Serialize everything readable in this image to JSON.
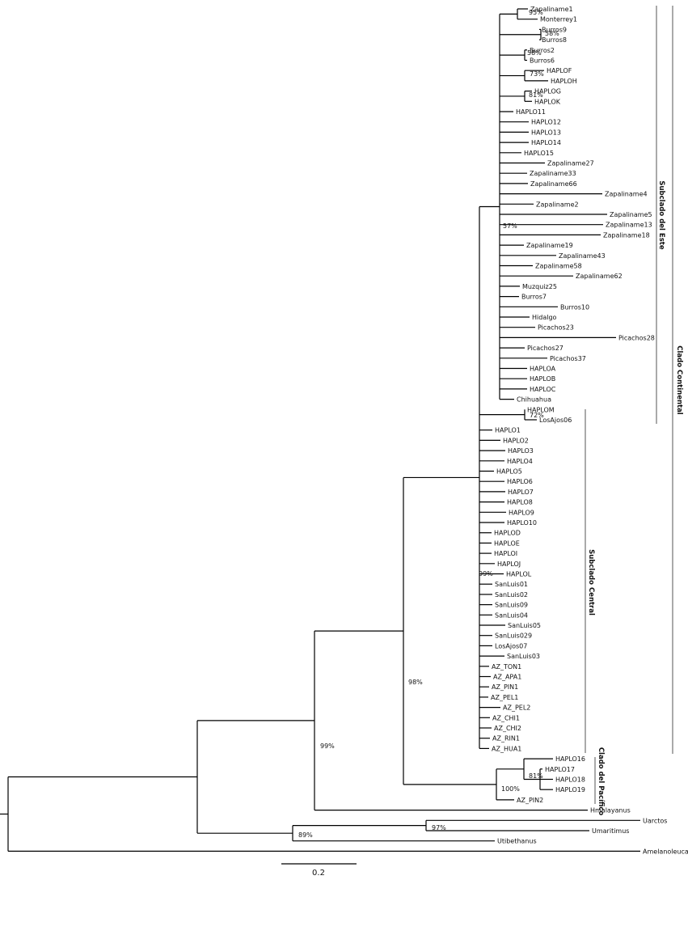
{
  "tips": [
    "Zapaliname1",
    "Monterrey1",
    "Burros9",
    "Burros8",
    "Burros2",
    "Burros6",
    "HAPLOF",
    "HAPLOH",
    "HAPLOG",
    "HAPLOK",
    "HAPLO11",
    "HAPLO12",
    "HAPLO13",
    "HAPLO14",
    "HAPLO15",
    "Zapaliname27",
    "Zapaliname33",
    "Zapaliname66",
    "Zapaliname4",
    "Zapaliname2",
    "Zapaliname5",
    "Zapaliname13",
    "Zapaliname18",
    "Zapaliname19",
    "Zapaliname43",
    "Zapaliname58",
    "Zapaliname62",
    "Muzquiz25",
    "Burros7",
    "Burros10",
    "Hidalgo",
    "Picachos23",
    "Picachos28",
    "Picachos27",
    "Picachos37",
    "HAPLOA",
    "HAPLOB",
    "HAPLOC",
    "Chihuahua",
    "HAPLOM",
    "LosAjos06",
    "HAPLO1",
    "HAPLO2",
    "HAPLO3",
    "HAPLO4",
    "HAPLO5",
    "HAPLO6",
    "HAPLO7",
    "HAPLO8",
    "HAPLO9",
    "HAPLO10",
    "HAPLOD",
    "HAPLOE",
    "HAPLOI",
    "HAPLOJ",
    "HAPLOL",
    "SanLuis01",
    "SanLuis02",
    "SanLuis09",
    "SanLuis04",
    "SanLuis05",
    "SanLuis029",
    "LosAjos07",
    "SanLuis03",
    "AZ_TON1",
    "AZ_APA1",
    "AZ_PIN1",
    "AZ_PEL1",
    "AZ_PEL2",
    "AZ_CHI1",
    "AZ_CHI2",
    "AZ_RIN1",
    "AZ_HUA1",
    "HAPLO16",
    "HAPLO17",
    "HAPLO18",
    "HAPLO19",
    "AZ_PIN2",
    "Hmalayanus",
    "Uarctos",
    "Umaritimus",
    "Utibethanus",
    "Amelanoleuca"
  ],
  "bootstrap": [
    "95%",
    "58%",
    "58%",
    "73%",
    "81%",
    "57%",
    "72%",
    "99%",
    "98%",
    "99%",
    "81%",
    "100%",
    "97%",
    "89%"
  ],
  "clades": {
    "este": "Subclado del Este",
    "continental": "Clado Continental",
    "central": "Subclado Central",
    "pacifico": "Clado del Pacífico"
  },
  "scale": {
    "label": "0.2"
  }
}
